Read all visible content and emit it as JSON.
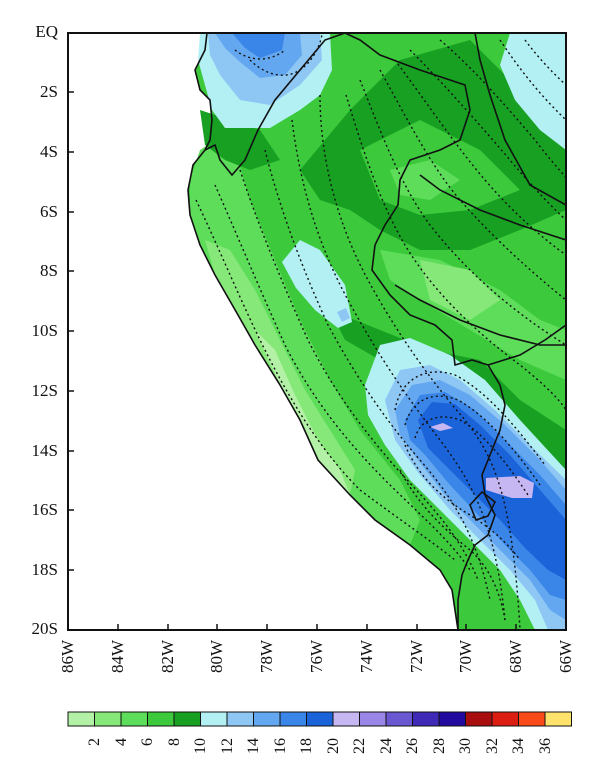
{
  "map": {
    "lat_labels": [
      "EQ",
      "2S",
      "4S",
      "6S",
      "8S",
      "10S",
      "12S",
      "14S",
      "16S",
      "18S",
      "20S"
    ],
    "lon_labels": [
      "86W",
      "84W",
      "82W",
      "80W",
      "78W",
      "76W",
      "74W",
      "72W",
      "70W",
      "68W",
      "66W"
    ],
    "extent": {
      "lon": [
        -86,
        -66
      ],
      "lat": [
        -20,
        0
      ]
    }
  },
  "legend": {
    "ticks": [
      "2",
      "4",
      "6",
      "8",
      "10",
      "12",
      "14",
      "16",
      "18",
      "20",
      "22",
      "24",
      "26",
      "28",
      "30",
      "32",
      "34",
      "36"
    ],
    "colors": [
      "#b3f2a6",
      "#86e878",
      "#5ddd5a",
      "#3cc93c",
      "#18a022",
      "#b3f0f4",
      "#8ec6f4",
      "#63a7f0",
      "#3a86e8",
      "#1a63d8",
      "#c6b6f2",
      "#9a86e6",
      "#6a58d2",
      "#3e2ab6",
      "#220a9e",
      "#a80e0e",
      "#dc1e12",
      "#fa4a1a",
      "#fde26c"
    ]
  }
}
